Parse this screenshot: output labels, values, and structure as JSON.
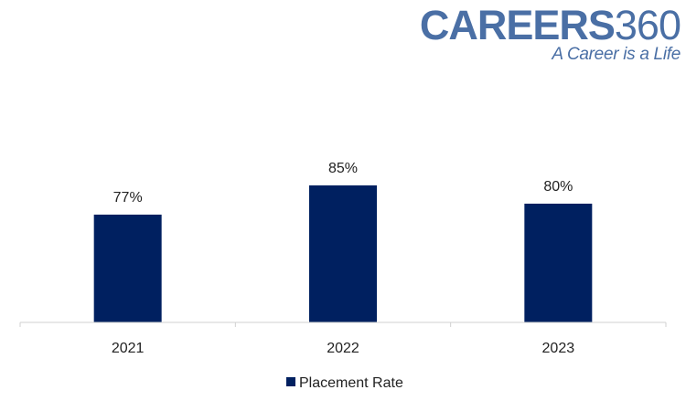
{
  "chart_data": {
    "type": "bar",
    "categories": [
      "2021",
      "2022",
      "2023"
    ],
    "series": [
      {
        "name": "Placement Rate",
        "values": [
          77,
          85,
          80
        ]
      }
    ],
    "data_labels": [
      "77%",
      "85%",
      "80%"
    ],
    "ylim": [
      0,
      100
    ],
    "grid": false,
    "legend_position": "bottom-center",
    "bar_color": "#002060"
  },
  "watermark": {
    "word": "CAREERS",
    "number": "360",
    "tagline": "A Career is a Life",
    "color": "#4a6fa5"
  }
}
